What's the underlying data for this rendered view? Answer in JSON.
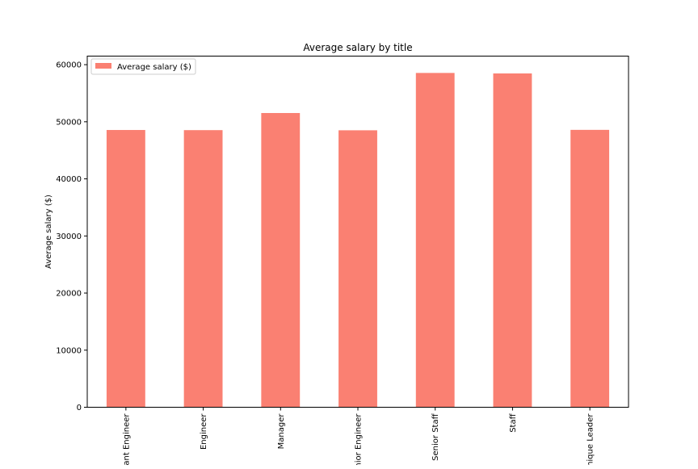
{
  "chart_data": {
    "type": "bar",
    "title": "Average salary by title",
    "xlabel": "",
    "ylabel": "Average salary ($)",
    "categories": [
      "Assistant Engineer",
      "Engineer",
      "Manager",
      "Senior Engineer",
      "Senior Staff",
      "Staff",
      "Technique Leader"
    ],
    "series": [
      {
        "name": "Average salary ($)",
        "values": [
          48560,
          48535,
          51531,
          48507,
          58550,
          58465,
          48583
        ]
      }
    ],
    "ylim": [
      0,
      61500
    ],
    "yticks": [
      0,
      10000,
      20000,
      30000,
      40000,
      50000,
      60000
    ],
    "grid": false,
    "legend_position": "top-left",
    "colors": {
      "bar": "#fa8072",
      "axis": "#000000",
      "legend_border": "#cccccc"
    }
  }
}
